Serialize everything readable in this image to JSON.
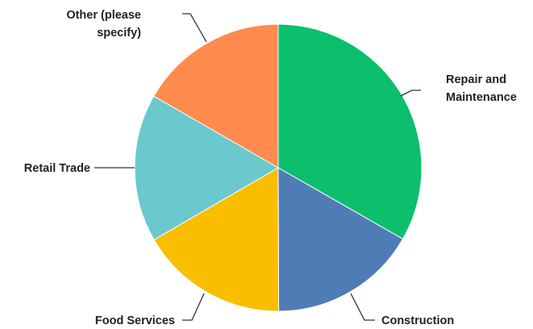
{
  "chart_data": {
    "type": "pie",
    "title": "",
    "slices": [
      {
        "label": "Repair and Maintenance",
        "label_lines": [
          "Repair and",
          "Maintenance"
        ],
        "value": 33.3,
        "color": "#0BBF6D"
      },
      {
        "label": "Construction",
        "label_lines": [
          "Construction"
        ],
        "value": 16.7,
        "color": "#507CB6"
      },
      {
        "label": "Food Services",
        "label_lines": [
          "Food Services"
        ],
        "value": 16.7,
        "color": "#F9BE00"
      },
      {
        "label": "Retail Trade",
        "label_lines": [
          "Retail Trade"
        ],
        "value": 16.7,
        "color": "#6BC8CD"
      },
      {
        "label": "Other (please specify)",
        "label_lines": [
          "Other (please",
          "specify)"
        ],
        "value": 16.7,
        "color": "#FF8B4F"
      }
    ],
    "start_angle": "12 o'clock",
    "direction": "clockwise",
    "legend": "none"
  }
}
